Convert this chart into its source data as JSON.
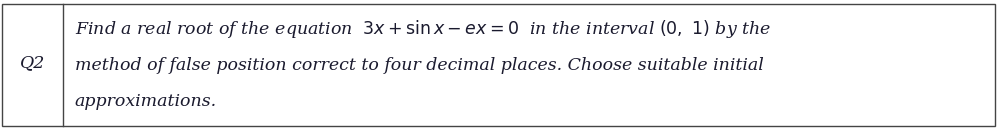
{
  "q_label": "Q2",
  "line1": "Find a real root of the equation  $3x + \\sin x - ex = 0$  in the interval $(0, 1)$ by the",
  "line2": "method of false position correct to four decimal places. Choose suitable initial",
  "line3": "approximations.",
  "bg_color": "#ffffff",
  "border_color": "#444444",
  "text_color": "#1a1a2e",
  "fontsize": 12.5,
  "q_fontsize": 12.5,
  "fig_width": 9.97,
  "fig_height": 1.3,
  "dpi": 100
}
